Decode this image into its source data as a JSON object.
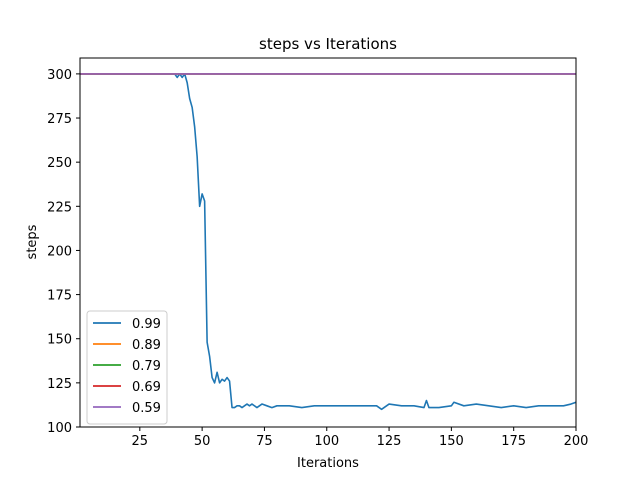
{
  "chart_data": {
    "type": "line",
    "title": "steps vs Iterations",
    "xlabel": "Iterations",
    "ylabel": "steps",
    "xlim": [
      1,
      200
    ],
    "ylim": [
      100,
      309
    ],
    "xticks": [
      25,
      50,
      75,
      100,
      125,
      150,
      175,
      200
    ],
    "yticks": [
      100,
      125,
      150,
      175,
      200,
      225,
      250,
      275,
      300
    ],
    "grid": false,
    "legend": "lower-left",
    "series": [
      {
        "name": "0.99",
        "color": "#1f77b4",
        "x": [
          1,
          5,
          10,
          15,
          20,
          25,
          30,
          35,
          39,
          40,
          41,
          42,
          43,
          44,
          45,
          46,
          47,
          48,
          49,
          50,
          51,
          52,
          53,
          54,
          55,
          56,
          57,
          58,
          59,
          60,
          61,
          62,
          63,
          64,
          65,
          66,
          67,
          68,
          69,
          70,
          72,
          74,
          76,
          78,
          80,
          85,
          90,
          95,
          100,
          105,
          110,
          115,
          120,
          122,
          125,
          130,
          135,
          139,
          140,
          141,
          143,
          145,
          150,
          151,
          155,
          160,
          165,
          170,
          175,
          180,
          185,
          190,
          195,
          198,
          200
        ],
        "y": [
          300,
          300,
          300,
          300,
          300,
          300,
          300,
          300,
          300,
          298,
          300,
          298,
          300,
          295,
          286,
          281,
          270,
          253,
          225,
          232,
          228,
          148,
          140,
          128,
          125,
          131,
          125,
          127,
          126,
          128,
          126,
          111,
          111,
          112,
          112,
          111,
          112,
          113,
          112,
          113,
          111,
          113,
          112,
          111,
          112,
          112,
          111,
          112,
          112,
          112,
          112,
          112,
          112,
          110,
          113,
          112,
          112,
          111,
          115,
          111,
          111,
          111,
          112,
          114,
          112,
          113,
          112,
          111,
          112,
          111,
          112,
          112,
          112,
          113,
          114
        ]
      },
      {
        "name": "0.89",
        "color": "#ff7f0e",
        "x": [
          1,
          200
        ],
        "y": [
          300,
          300
        ]
      },
      {
        "name": "0.79",
        "color": "#2ca02c",
        "x": [
          1,
          200
        ],
        "y": [
          300,
          300
        ]
      },
      {
        "name": "0.69",
        "color": "#d62728",
        "x": [
          1,
          200
        ],
        "y": [
          300,
          300
        ]
      },
      {
        "name": "0.59",
        "color": "#9467bd",
        "x": [
          1,
          200
        ],
        "y": [
          300,
          300
        ]
      }
    ]
  }
}
